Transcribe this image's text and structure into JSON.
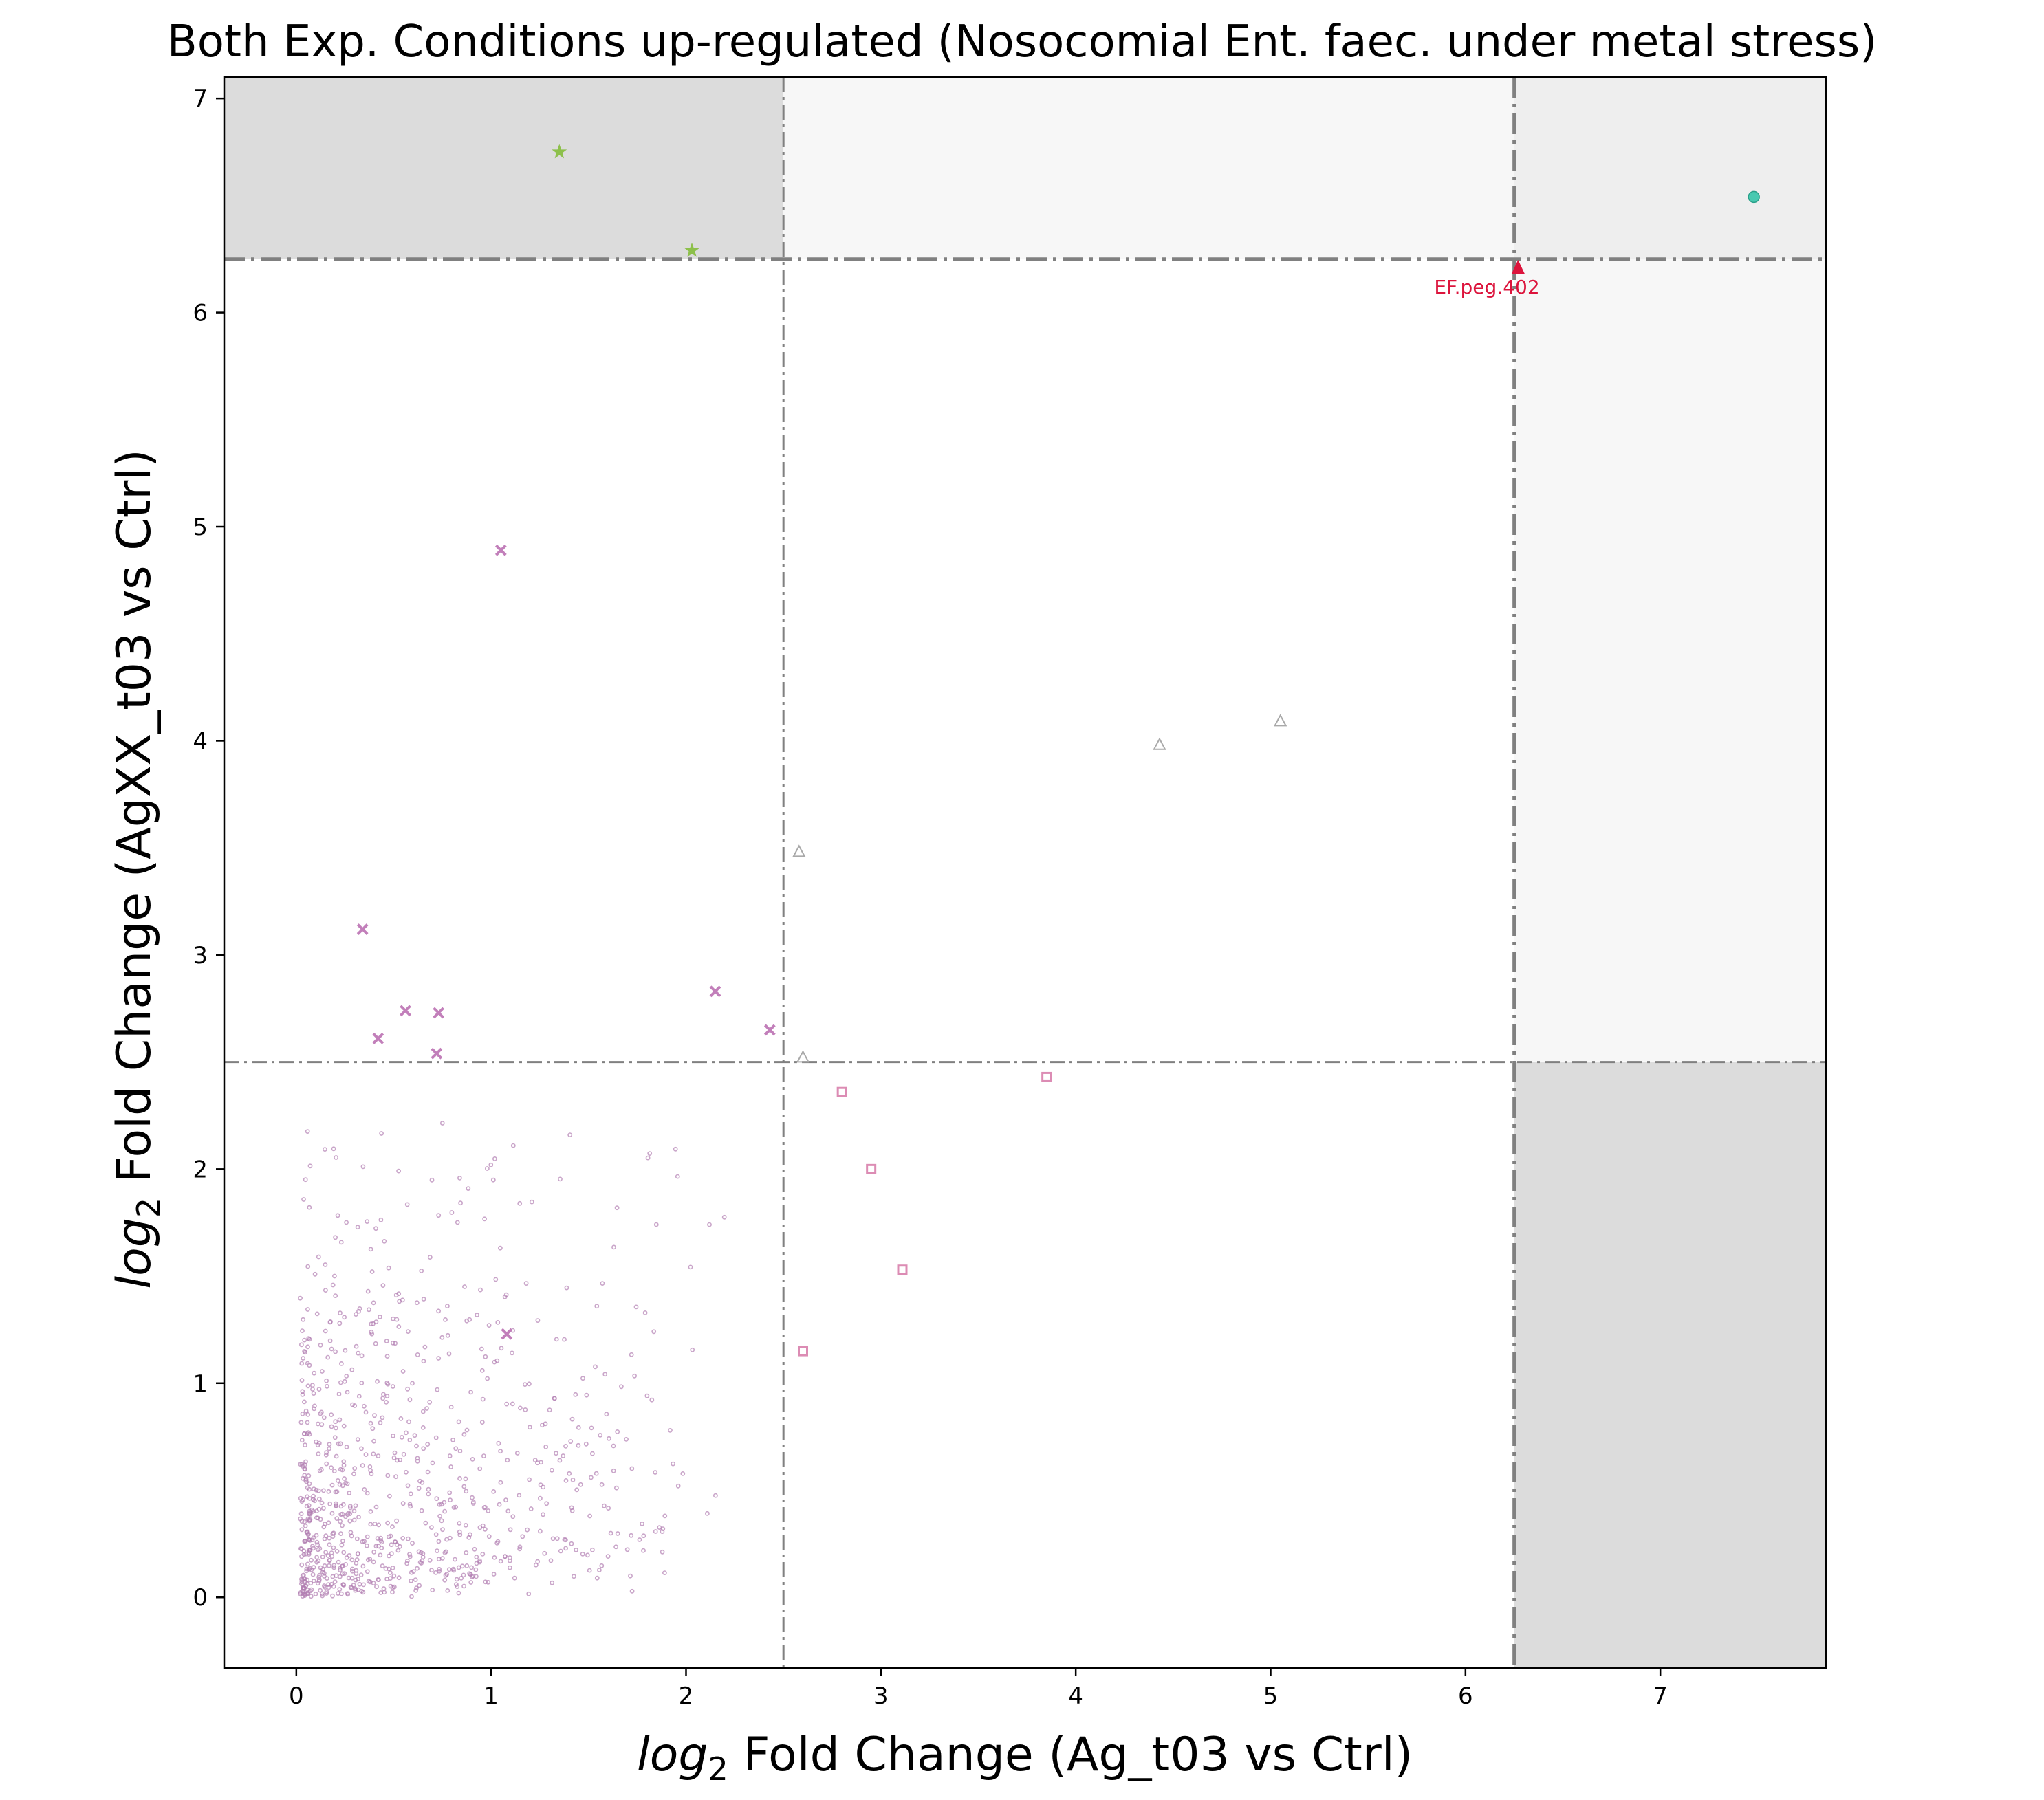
{
  "chart_data": {
    "type": "scatter",
    "title": "Both Exp. Conditions up-regulated (Nosocomial Ent. faec. under metal stress)",
    "xlabel": {
      "prefix": "log",
      "sub": "2",
      "rest": " Fold Change (Ag_t03 vs Ctrl)"
    },
    "ylabel": {
      "prefix": "log",
      "sub": "2",
      "rest": " Fold Change (AgXX_t03 vs Ctrl)"
    },
    "xlim": [
      -0.37,
      7.85
    ],
    "ylim": [
      -0.33,
      7.1
    ],
    "x_ticks": [
      0,
      1,
      2,
      3,
      4,
      5,
      6,
      7
    ],
    "y_ticks": [
      0,
      1,
      2,
      3,
      4,
      5,
      6,
      7
    ],
    "thresholds": {
      "inner": 2.5,
      "outer": 6.25
    },
    "regions": {
      "top_left_color": "#dcdcdc",
      "top_middle_color": "#f7f7f7",
      "top_right_color": "#eeeeee",
      "right_middle_color": "#f7f7f7",
      "bottom_right_color": "#dcdcdc",
      "threshold_line_color": "#808080"
    },
    "colors": {
      "background_points": "#b27fb2",
      "x_marker": "#c27fba",
      "triangle": "#a9a9a9",
      "star": "#8dc04b",
      "circle": "#48c9b0",
      "highlight": "#dc143c",
      "tilted_square": "#dc8cb4"
    },
    "series": [
      {
        "name": "",
        "marker": "x",
        "points": [
          [
            1.05,
            4.89
          ],
          [
            0.34,
            3.12
          ],
          [
            0.56,
            2.74
          ],
          [
            0.73,
            2.73
          ],
          [
            0.42,
            2.61
          ],
          [
            0.72,
            2.54
          ],
          [
            2.15,
            2.83
          ],
          [
            2.43,
            2.65
          ],
          [
            1.08,
            1.23
          ]
        ]
      },
      {
        "name": "",
        "marker": "square",
        "points": [
          [
            2.8,
            2.36
          ],
          [
            3.85,
            2.43
          ],
          [
            2.95,
            2.0
          ],
          [
            3.11,
            1.53
          ],
          [
            2.6,
            1.15
          ]
        ]
      },
      {
        "name": "",
        "marker": "triangle",
        "points": [
          [
            2.58,
            3.48
          ],
          [
            4.43,
            3.98
          ],
          [
            5.05,
            4.09
          ],
          [
            2.6,
            2.52
          ]
        ]
      },
      {
        "name": "",
        "marker": "star",
        "points": [
          [
            1.35,
            6.75
          ],
          [
            2.03,
            6.29
          ]
        ]
      },
      {
        "name": "",
        "marker": "circle",
        "points": [
          [
            7.48,
            6.54
          ]
        ]
      },
      {
        "name": "",
        "marker": "highlight",
        "points": [
          [
            6.27,
            6.21
          ]
        ]
      }
    ],
    "annotations": [
      {
        "text": "EF.peg.402",
        "x": 6.11,
        "y": 6.12
      }
    ]
  }
}
